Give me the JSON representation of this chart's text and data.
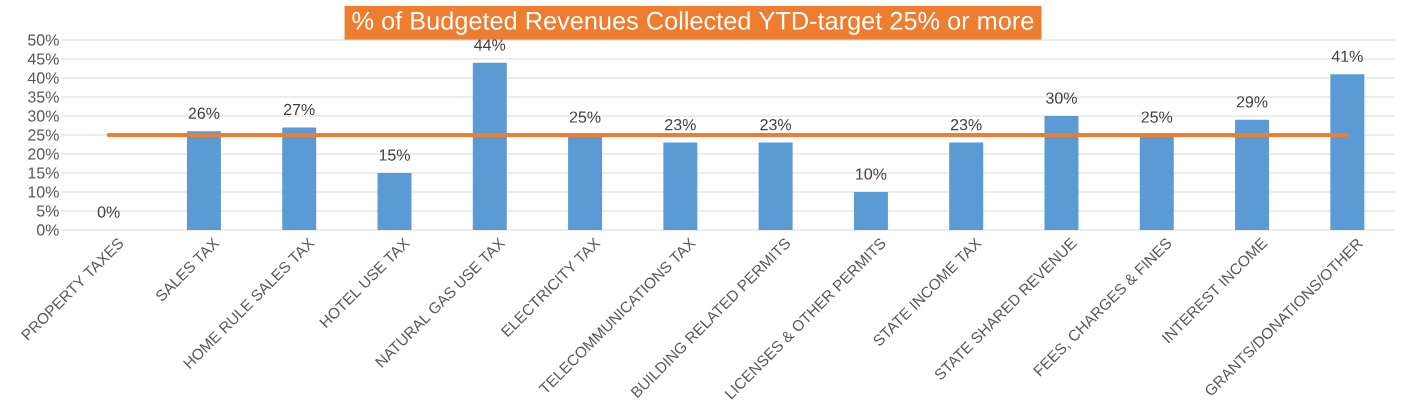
{
  "chart_data": {
    "type": "bar",
    "title": "% of Budgeted Revenues Collected YTD-target 25% or more",
    "categories": [
      "PROPERTY TAXES",
      "SALES TAX",
      "HOME RULE SALES TAX",
      "HOTEL USE TAX",
      "NATURAL GAS USE TAX",
      "ELECTRICITY TAX",
      "TELECOMMUNICATIONS TAX",
      "BUILDING RELATED PERMITS",
      "LICENSES & OTHER PERMITS",
      "STATE INCOME TAX",
      "STATE SHARED REVENUE",
      "FEES, CHARGES & FINES",
      "INTEREST INCOME",
      "GRANTS/DONATIONS/OTHER"
    ],
    "values": [
      0,
      26,
      27,
      15,
      44,
      25,
      23,
      23,
      10,
      23,
      30,
      25,
      29,
      41
    ],
    "value_labels": [
      "0%",
      "26%",
      "27%",
      "15%",
      "44%",
      "25%",
      "23%",
      "23%",
      "10%",
      "23%",
      "30%",
      "25%",
      "29%",
      "41%"
    ],
    "color": "#5b9bd5",
    "ylim": [
      0,
      50
    ],
    "yticks": [
      {
        "value": 0,
        "label": "0%"
      },
      {
        "value": 5,
        "label": "5%"
      },
      {
        "value": 10,
        "label": "10%"
      },
      {
        "value": 15,
        "label": "15%"
      },
      {
        "value": 20,
        "label": "20%"
      },
      {
        "value": 25,
        "label": "25%"
      },
      {
        "value": 30,
        "label": "30%"
      },
      {
        "value": 35,
        "label": "35%"
      },
      {
        "value": 40,
        "label": "40%"
      },
      {
        "value": 45,
        "label": "45%"
      },
      {
        "value": 50,
        "label": "50%"
      }
    ],
    "grid": "y",
    "ref_lines": [
      {
        "axis": "y",
        "value": 25,
        "color": "#ed7d31"
      }
    ]
  }
}
